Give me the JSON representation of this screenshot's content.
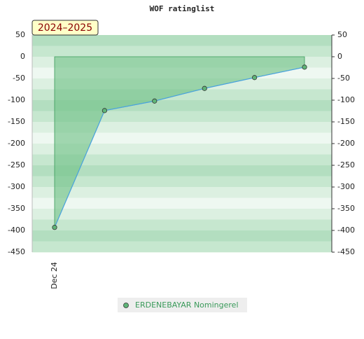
{
  "chart_data": {
    "type": "line",
    "title": "WOF ratinglist",
    "badge": "2024–2025",
    "categories": [
      "Dec 24",
      null,
      null,
      null,
      null,
      null
    ],
    "series": [
      {
        "name": "ERDENEBAYAR Nomingerel",
        "color": "#4aa3df",
        "marker_color": "#5fb578",
        "fill_color": "#6cbf84",
        "values": [
          -393,
          -124,
          -102,
          -73,
          -48,
          -24
        ]
      }
    ],
    "ylim": [
      -450,
      50
    ],
    "yticks": [
      50,
      0,
      -50,
      -100,
      -150,
      -200,
      -250,
      -300,
      -350,
      -400,
      -450
    ],
    "grid": true
  }
}
